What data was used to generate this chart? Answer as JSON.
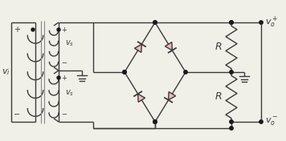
{
  "bg_color": "#f0efe8",
  "line_color": "#3a3a3a",
  "diode_fill": "#f0b8b8",
  "diode_stroke": "#3a3a3a",
  "text_color": "#1a1a1a",
  "dot_color": "#1a1a1a",
  "figsize": [
    3.56,
    1.76
  ],
  "dpi": 100,
  "coil_color": "#3a3a3a",
  "divider_color": "#888888"
}
